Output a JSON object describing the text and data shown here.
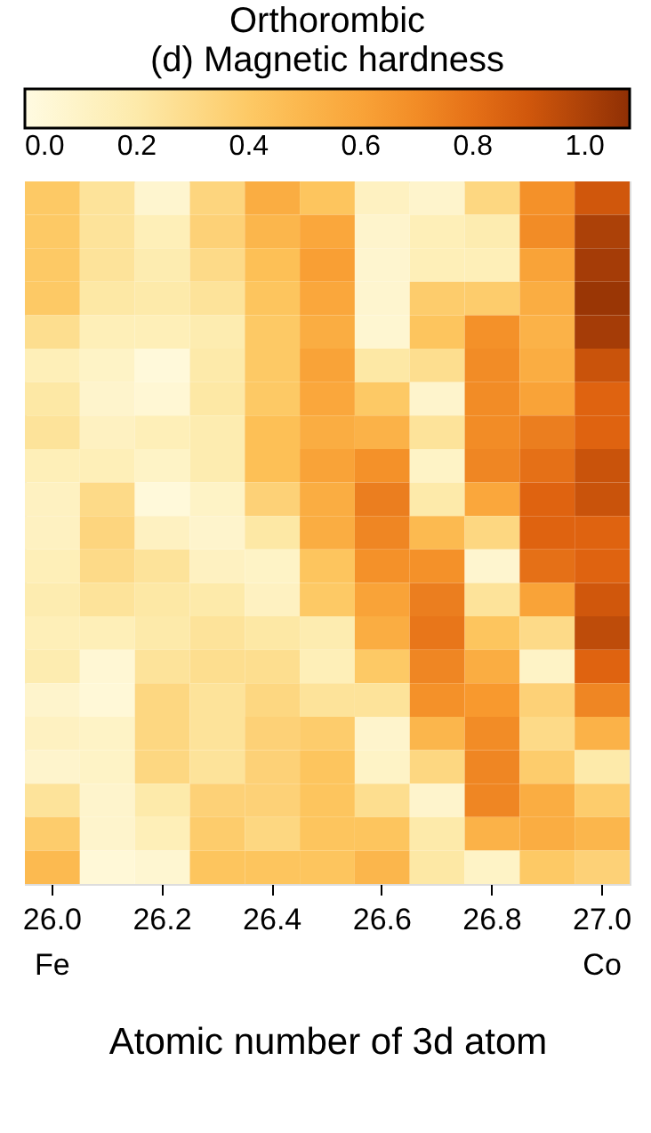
{
  "chart_data": {
    "type": "heatmap",
    "title": [
      "Orthorombic",
      "(d) Magnetic hardness"
    ],
    "xlabel": "Atomic number of 3d atom",
    "categories": [
      "26.0",
      null,
      "26.2",
      null,
      "26.4",
      null,
      "26.6",
      null,
      "26.8",
      null,
      "27.0"
    ],
    "y_categories": [
      null,
      null,
      null,
      null,
      null,
      null,
      null,
      null,
      null,
      null,
      null,
      null,
      null,
      null,
      null,
      null,
      null,
      null,
      null,
      null,
      null
    ],
    "cells": [
      [
        0.4,
        0.25,
        0.07,
        0.33,
        0.55,
        0.42,
        0.12,
        0.08,
        0.32,
        0.68,
        0.9
      ],
      [
        0.4,
        0.25,
        0.15,
        0.35,
        0.5,
        0.58,
        0.08,
        0.15,
        0.18,
        0.7,
        1.0
      ],
      [
        0.4,
        0.25,
        0.18,
        0.3,
        0.45,
        0.62,
        0.07,
        0.15,
        0.15,
        0.6,
        1.02
      ],
      [
        0.4,
        0.22,
        0.2,
        0.25,
        0.42,
        0.58,
        0.07,
        0.38,
        0.38,
        0.55,
        1.05
      ],
      [
        0.28,
        0.15,
        0.15,
        0.18,
        0.4,
        0.55,
        0.06,
        0.42,
        0.68,
        0.52,
        1.02
      ],
      [
        0.15,
        0.1,
        0.03,
        0.2,
        0.4,
        0.6,
        0.22,
        0.28,
        0.7,
        0.55,
        0.92
      ],
      [
        0.22,
        0.08,
        0.05,
        0.22,
        0.4,
        0.58,
        0.4,
        0.08,
        0.7,
        0.6,
        0.85
      ],
      [
        0.25,
        0.12,
        0.15,
        0.18,
        0.45,
        0.55,
        0.52,
        0.25,
        0.7,
        0.75,
        0.85
      ],
      [
        0.15,
        0.15,
        0.1,
        0.18,
        0.45,
        0.6,
        0.68,
        0.1,
        0.72,
        0.8,
        0.92
      ],
      [
        0.12,
        0.3,
        0.03,
        0.1,
        0.35,
        0.55,
        0.75,
        0.2,
        0.58,
        0.85,
        0.92
      ],
      [
        0.12,
        0.33,
        0.12,
        0.08,
        0.22,
        0.55,
        0.72,
        0.48,
        0.32,
        0.85,
        0.85
      ],
      [
        0.15,
        0.3,
        0.25,
        0.12,
        0.1,
        0.42,
        0.68,
        0.68,
        0.07,
        0.8,
        0.85
      ],
      [
        0.18,
        0.25,
        0.22,
        0.2,
        0.12,
        0.4,
        0.6,
        0.75,
        0.25,
        0.6,
        0.9
      ],
      [
        0.15,
        0.15,
        0.2,
        0.25,
        0.22,
        0.18,
        0.55,
        0.78,
        0.42,
        0.3,
        0.95
      ],
      [
        0.18,
        0.05,
        0.25,
        0.28,
        0.28,
        0.15,
        0.4,
        0.72,
        0.55,
        0.1,
        0.85
      ],
      [
        0.08,
        0.04,
        0.32,
        0.25,
        0.32,
        0.25,
        0.25,
        0.68,
        0.65,
        0.35,
        0.72
      ],
      [
        0.12,
        0.1,
        0.32,
        0.25,
        0.35,
        0.38,
        0.08,
        0.5,
        0.7,
        0.3,
        0.52
      ],
      [
        0.08,
        0.1,
        0.32,
        0.25,
        0.35,
        0.42,
        0.1,
        0.32,
        0.72,
        0.38,
        0.2
      ],
      [
        0.25,
        0.08,
        0.2,
        0.35,
        0.35,
        0.42,
        0.28,
        0.08,
        0.72,
        0.55,
        0.38
      ],
      [
        0.38,
        0.08,
        0.15,
        0.38,
        0.32,
        0.42,
        0.42,
        0.2,
        0.52,
        0.55,
        0.5
      ],
      [
        0.48,
        0.04,
        0.06,
        0.42,
        0.42,
        0.42,
        0.5,
        0.22,
        0.1,
        0.4,
        0.35
      ]
    ],
    "clim": [
      0,
      1.08
    ],
    "cticks": [
      {
        "value": 0,
        "label": "0.0"
      },
      {
        "value": 0.2,
        "label": "0.2"
      },
      {
        "value": 0.4,
        "label": "0.4"
      },
      {
        "value": 0.6,
        "label": "0.6"
      },
      {
        "value": 0.8,
        "label": "0.8"
      },
      {
        "value": 1.0,
        "label": "1.0"
      }
    ],
    "annotations": [
      "Fe",
      "Co"
    ]
  }
}
